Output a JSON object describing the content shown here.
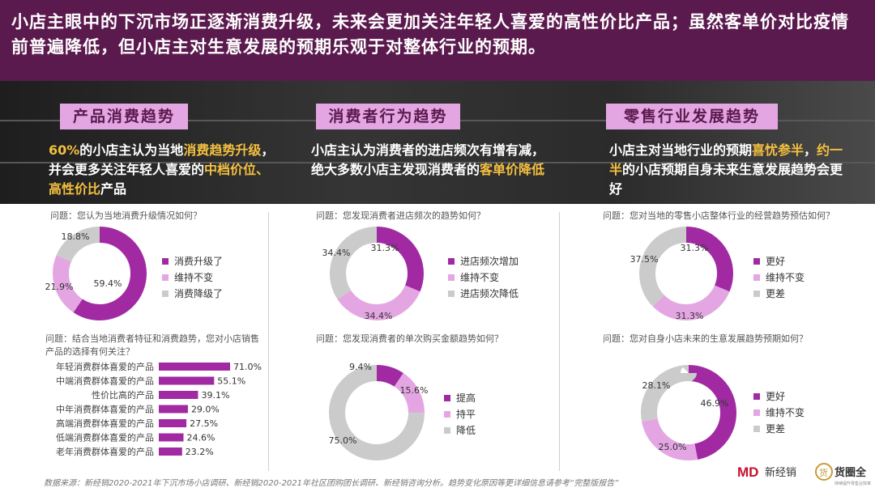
{
  "headline": "小店主眼中的下沉市场正逐渐消费升级，未来会更加关注年轻人喜爱的高性价比产品；虽然客单价对比疫情前普遍降低，但小店主对生意发展的预期乐观于对整体行业的预期。",
  "colors": {
    "header": "#5b1a4e",
    "tag": "#e4a6e2",
    "highlight": "#f5c040",
    "dark": "#a12aa3",
    "light": "#e4a6e2",
    "grey": "#cbcbcb"
  },
  "sections": [
    {
      "tag": "产品消费趋势",
      "segments": [
        {
          "t": "60%",
          "hl": true
        },
        {
          "t": "的小店主认为当地",
          "hl": false
        },
        {
          "t": "消费趋势升级",
          "hl": true
        },
        {
          "t": "，并会更多关注年轻人喜爱的",
          "hl": false
        },
        {
          "t": "中档价位、高性价比",
          "hl": true
        },
        {
          "t": "产品",
          "hl": false
        }
      ]
    },
    {
      "tag": "消费者行为趋势",
      "segments": [
        {
          "t": "小店主认为消费者的进店频次有增有减，绝大多数小店主发现消费者的",
          "hl": false
        },
        {
          "t": "客单价降低",
          "hl": true
        }
      ]
    },
    {
      "tag": "零售行业发展趋势",
      "segments": [
        {
          "t": "小店主对当地行业的预期",
          "hl": false
        },
        {
          "t": "喜忧参半",
          "hl": true
        },
        {
          "t": "，",
          "hl": false
        },
        {
          "t": "约一半",
          "hl": true
        },
        {
          "t": "的小店预期自身未来生意发展趋势会更好",
          "hl": false
        }
      ]
    }
  ],
  "questions": {
    "q1": "问题：您认为当地消费升级情况如何？",
    "q2": "问题：结合当地消费者特征和消费趋势，您对小店销售产品的选择有何关注？",
    "q3": "问题：您发现消费者进店频次的趋势如何？",
    "q4": "问题：您发现消费者的单次购买金额趋势如何？",
    "q5": "问题：您对当地的零售小店整体行业的经营趋势预估如何？",
    "q6": "问题：您对自身小店未来的生意发展趋势预期如何？"
  },
  "chart_data": [
    {
      "id": "c1",
      "type": "pie",
      "donut": true,
      "labels": [
        "消费升级了",
        "维持不变",
        "消费降级了"
      ],
      "values": [
        59.4,
        21.9,
        18.8
      ],
      "value_labels": [
        "59.4%",
        "21.9%",
        "18.8%"
      ],
      "colors": [
        "#a12aa3",
        "#e4a6e2",
        "#cbcbcb"
      ],
      "legend": "right"
    },
    {
      "id": "c2",
      "type": "bar",
      "orientation": "horizontal",
      "categories": [
        "年轻消费群体喜爱的产品",
        "中端消费群体喜爱的产品",
        "性价比高的产品",
        "中年消费群体喜爱的产品",
        "高端消费群体喜爱的产品",
        "低端消费群体喜爱的产品",
        "老年消费群体喜爱的产品"
      ],
      "values": [
        71.0,
        55.1,
        39.1,
        29.0,
        27.5,
        24.6,
        23.2
      ],
      "value_labels": [
        "71.0%",
        "55.1%",
        "39.1%",
        "29.0%",
        "27.5%",
        "24.6%",
        "23.2%"
      ],
      "xlim": [
        0,
        71.0
      ],
      "color": "#a12aa3"
    },
    {
      "id": "c3",
      "type": "pie",
      "donut": true,
      "labels": [
        "进店频次增加",
        "维持不变",
        "进店频次降低"
      ],
      "values": [
        31.3,
        34.4,
        34.4
      ],
      "value_labels": [
        "31.3%",
        "34.4%",
        "34.4%"
      ],
      "colors": [
        "#a12aa3",
        "#e4a6e2",
        "#cbcbcb"
      ],
      "legend": "right"
    },
    {
      "id": "c4",
      "type": "pie",
      "donut": true,
      "labels": [
        "提高",
        "持平",
        "降低"
      ],
      "values": [
        9.4,
        15.6,
        75.0
      ],
      "value_labels": [
        "9.4%",
        "15.6%",
        "75.0%"
      ],
      "colors": [
        "#a12aa3",
        "#e4a6e2",
        "#cbcbcb"
      ],
      "legend": "right"
    },
    {
      "id": "c5",
      "type": "pie",
      "donut": true,
      "labels": [
        "更好",
        "维持不变",
        "更差"
      ],
      "values": [
        31.3,
        31.3,
        37.5
      ],
      "value_labels": [
        "31.3%",
        "31.3%",
        "37.5%"
      ],
      "colors": [
        "#a12aa3",
        "#e4a6e2",
        "#cbcbcb"
      ],
      "legend": "right"
    },
    {
      "id": "c6",
      "type": "pie",
      "donut": true,
      "labels": [
        "更好",
        "维持不变",
        "更差"
      ],
      "values": [
        46.9,
        25.0,
        28.1
      ],
      "value_labels": [
        "46.9%",
        "25.0%",
        "28.1%"
      ],
      "colors": [
        "#a12aa3",
        "#e4a6e2",
        "#cbcbcb"
      ],
      "legend": "right"
    }
  ],
  "source": "数据来源：新经销2020-2021年下沉市场小店调研、新经销2020-2021年社区团购团长调研、新经销咨询分析。趋势变化原因等更详细信息请参考“完整版报告”",
  "logos": {
    "left_mark": "MD",
    "left_text": "新经销",
    "right_mark": "货",
    "right_text": "货圈全",
    "right_sub": "持续提升零售业效率"
  }
}
